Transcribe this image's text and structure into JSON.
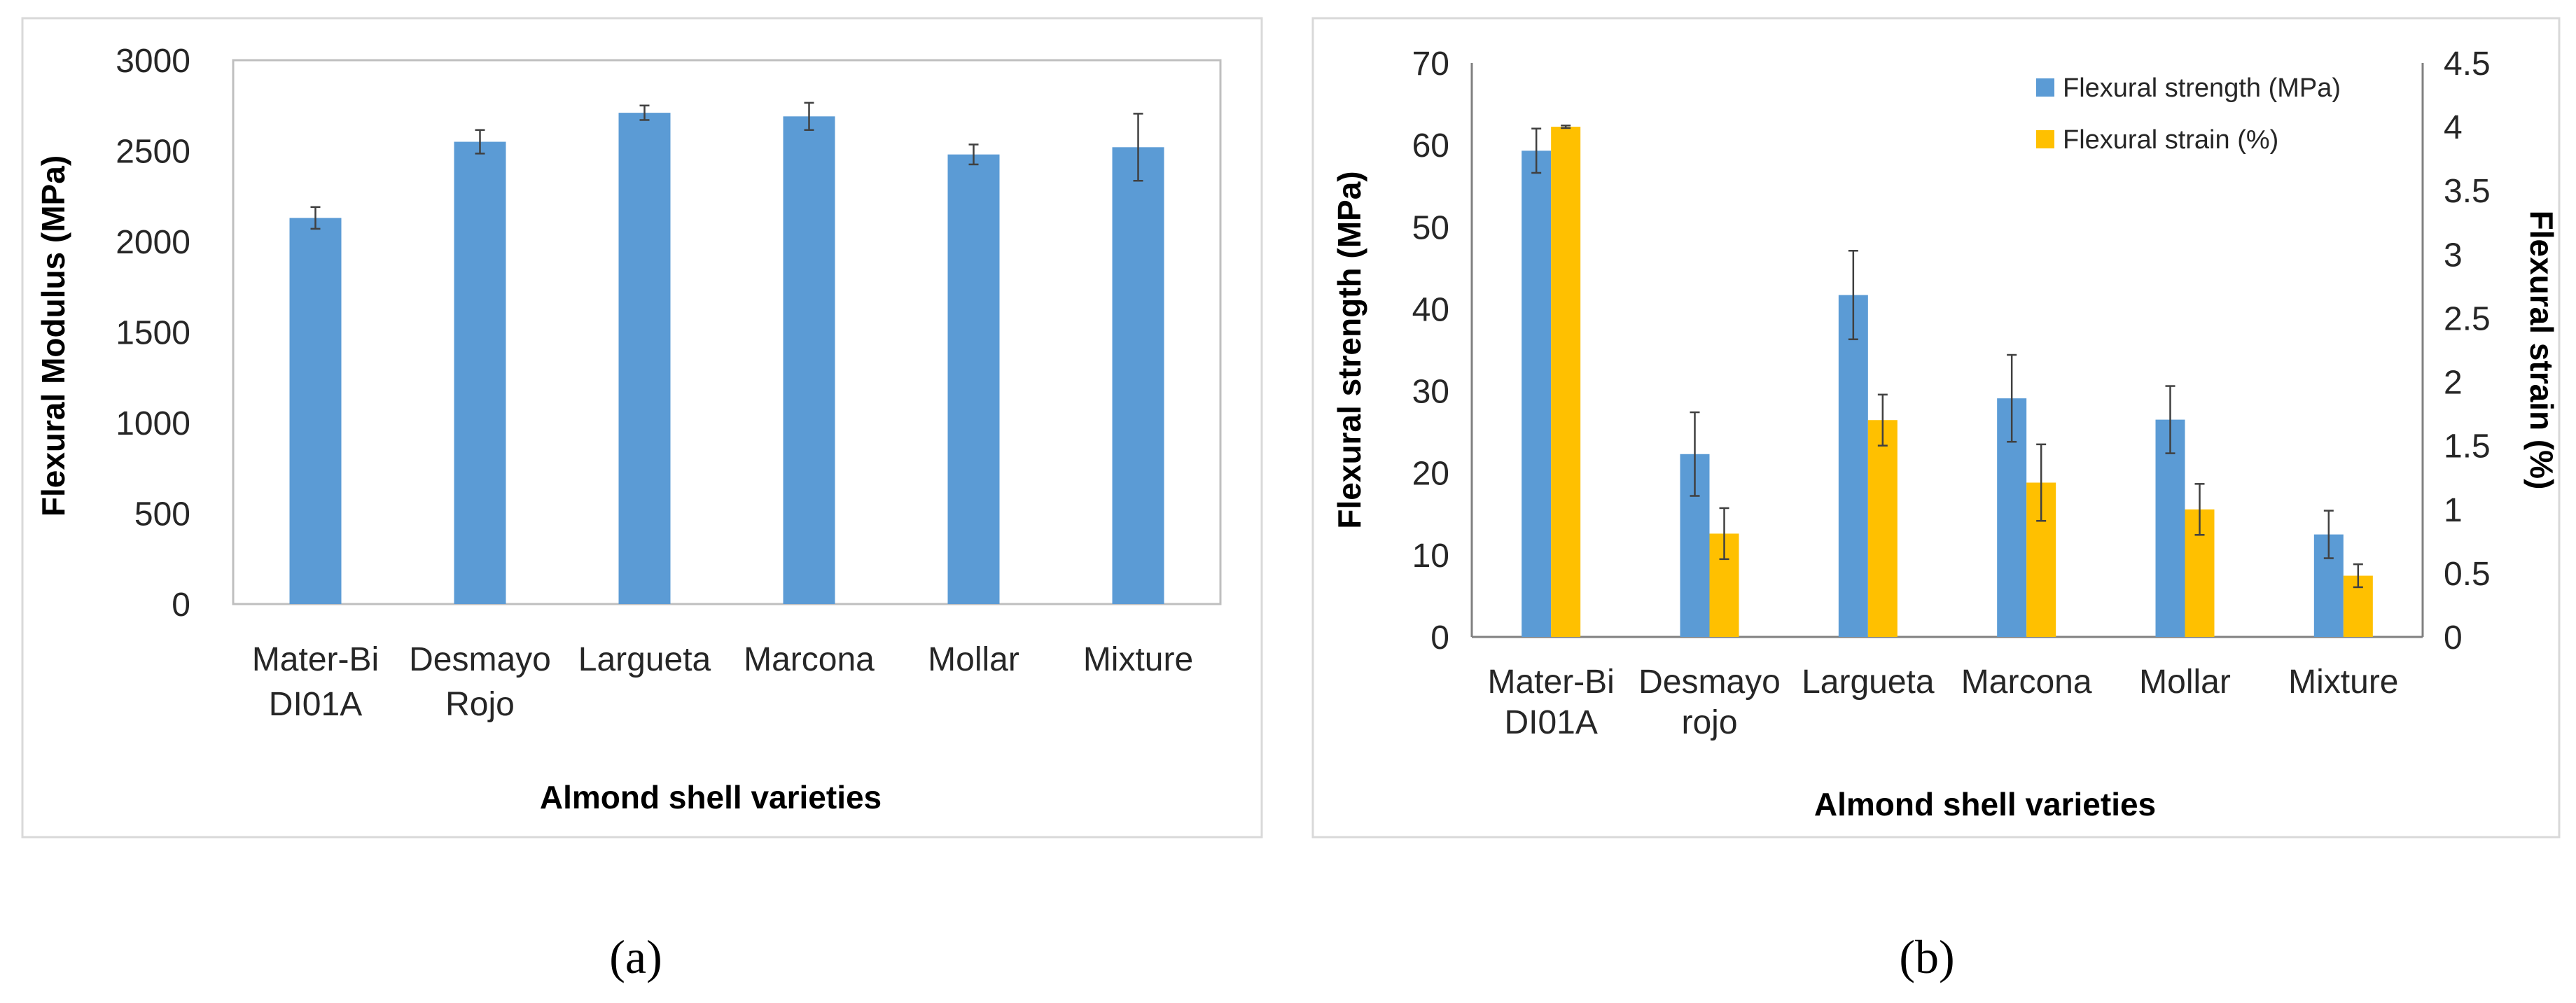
{
  "colors": {
    "blue": "#5B9BD5",
    "gold": "#FFC000",
    "frame": "#D9D9D9",
    "axis": "#808080",
    "err": "#404040"
  },
  "chart_data": [
    {
      "panel_label": "(a)",
      "type": "bar",
      "categories": [
        [
          "Mater-Bi",
          "DI01A"
        ],
        [
          "Desmayo",
          "Rojo"
        ],
        [
          "Largueta"
        ],
        [
          "Marcona"
        ],
        [
          "Mollar"
        ],
        [
          "Mixture"
        ]
      ],
      "series": [
        {
          "name": "Flexural Modulus (MPa)",
          "values": [
            2130,
            2550,
            2710,
            2690,
            2480,
            2520
          ],
          "errors": [
            60,
            65,
            40,
            75,
            55,
            185
          ]
        }
      ],
      "ylim": [
        0,
        3000
      ],
      "yticks": [
        "0",
        "500",
        "1000",
        "1500",
        "2000",
        "2500",
        "3000"
      ],
      "ylabel": "Flexural Modulus (MPa)",
      "xlabel": "Almond shell varieties"
    },
    {
      "panel_label": "(b)",
      "type": "bar",
      "categories": [
        [
          "Mater-Bi",
          "DI01A"
        ],
        [
          "Desmayo",
          "rojo"
        ],
        [
          "Largueta"
        ],
        [
          "Marcona"
        ],
        [
          "Mollar"
        ],
        [
          "Mixture"
        ]
      ],
      "series": [
        {
          "name": "Flexural strength (MPa)",
          "axis": "left",
          "values": [
            59.3,
            22.3,
            41.7,
            29.1,
            26.5,
            12.5
          ],
          "errors": [
            2.7,
            5.1,
            5.4,
            5.3,
            4.1,
            2.9
          ]
        },
        {
          "name": "Flexural strain (%)",
          "axis": "right",
          "values": [
            4.0,
            0.81,
            1.7,
            1.21,
            1.0,
            0.48
          ],
          "errors": [
            0.01,
            0.2,
            0.2,
            0.3,
            0.2,
            0.09
          ]
        }
      ],
      "ylim_left": [
        0,
        70
      ],
      "yticks_left": [
        "0",
        "10",
        "20",
        "30",
        "40",
        "50",
        "60",
        "70"
      ],
      "ylim_right": [
        0,
        4.5
      ],
      "yticks_right": [
        "0",
        "0.5",
        "1",
        "1.5",
        "2",
        "2.5",
        "3",
        "3.5",
        "4",
        "4.5"
      ],
      "ylabel_left": "Flexural strength  (MPa)",
      "ylabel_right": "Flexural strain (%)",
      "xlabel": "Almond shell varieties",
      "legend": [
        "Flexural strength (MPa)",
        "Flexural strain (%)"
      ],
      "legend_position": "top-right"
    }
  ]
}
